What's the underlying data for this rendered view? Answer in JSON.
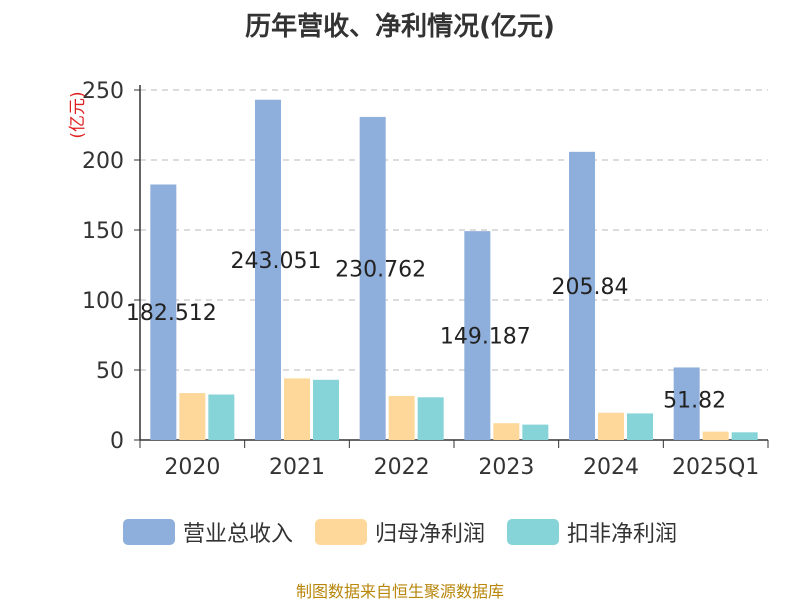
{
  "chart_data": {
    "type": "bar",
    "title": "历年营收、净利情况(亿元)",
    "ylabel": "(亿元)",
    "ylim": [
      0,
      250
    ],
    "yticks": [
      0,
      50,
      100,
      150,
      200,
      250
    ],
    "grid": true,
    "legend_position": "bottom",
    "categories": [
      "2020",
      "2021",
      "2022",
      "2023",
      "2024",
      "2025Q1"
    ],
    "series": [
      {
        "name": "营业总收入",
        "color": "#8eaedb",
        "values": [
          182.512,
          243.051,
          230.762,
          149.187,
          205.84,
          51.82
        ],
        "labels": [
          "182.512",
          "243.051",
          "230.762",
          "149.187",
          "205.84",
          "51.82"
        ]
      },
      {
        "name": "归母净利润",
        "color": "#fdd89a",
        "values": [
          33.5,
          44.0,
          31.5,
          12.0,
          19.5,
          6.0
        ]
      },
      {
        "name": "扣非净利润",
        "color": "#86d4d7",
        "values": [
          32.5,
          43.0,
          30.5,
          11.0,
          19.0,
          5.5
        ]
      }
    ]
  },
  "footer": {
    "source": "制图数据来自恒生聚源数据库"
  }
}
